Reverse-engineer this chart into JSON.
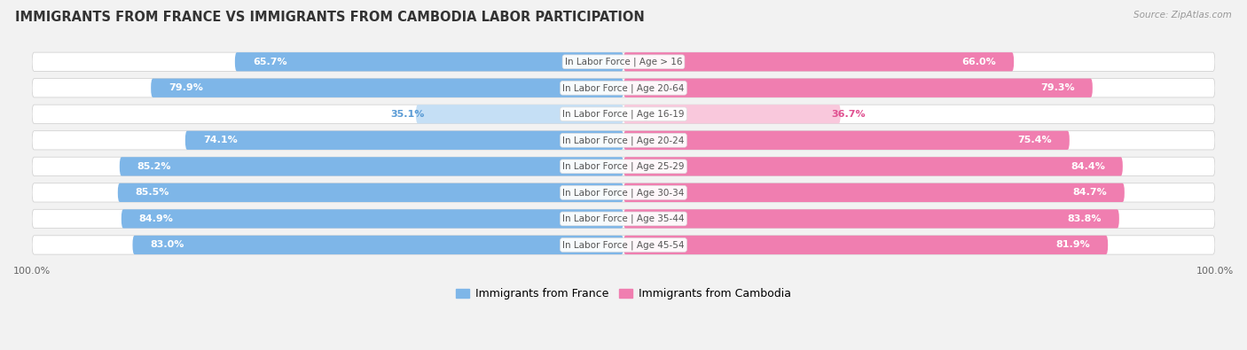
{
  "title": "IMMIGRANTS FROM FRANCE VS IMMIGRANTS FROM CAMBODIA LABOR PARTICIPATION",
  "source": "Source: ZipAtlas.com",
  "categories": [
    "In Labor Force | Age > 16",
    "In Labor Force | Age 20-64",
    "In Labor Force | Age 16-19",
    "In Labor Force | Age 20-24",
    "In Labor Force | Age 25-29",
    "In Labor Force | Age 30-34",
    "In Labor Force | Age 35-44",
    "In Labor Force | Age 45-54"
  ],
  "france_values": [
    65.7,
    79.9,
    35.1,
    74.1,
    85.2,
    85.5,
    84.9,
    83.0
  ],
  "cambodia_values": [
    66.0,
    79.3,
    36.7,
    75.4,
    84.4,
    84.7,
    83.8,
    81.9
  ],
  "france_color": "#7EB6E8",
  "cambodia_color": "#F07EB0",
  "france_color_light": "#C5DFF5",
  "cambodia_color_light": "#F9C8DC",
  "bg_color": "#f2f2f2",
  "bar_bg_color": "#e2e2e2",
  "label_color_france": "#5A9BD5",
  "label_color_cambodia": "#E05090",
  "center_label_color": "#555555",
  "title_color": "#333333",
  "max_value": 100.0,
  "bar_height": 0.72,
  "title_fontsize": 10.5,
  "label_fontsize": 8,
  "category_fontsize": 7.5,
  "axis_fontsize": 8,
  "legend_fontsize": 9
}
